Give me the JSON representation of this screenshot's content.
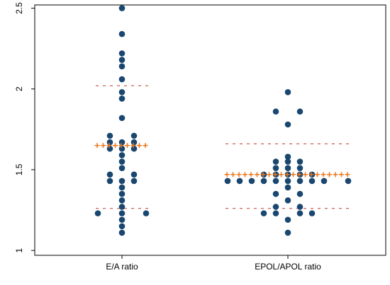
{
  "chart_data": {
    "type": "scatter",
    "categories": [
      "E/A ratio",
      "EPOL/APOL ratio"
    ],
    "ylim": [
      0.97,
      2.52
    ],
    "yticks": [
      {
        "value": 1,
        "label": "1"
      },
      {
        "value": 1.5,
        "label": "1.5"
      },
      {
        "value": 2,
        "label": "2"
      },
      {
        "value": 2.5,
        "label": "2.5"
      }
    ],
    "grid": false,
    "colors": {
      "point": "#1a476f",
      "mean_marker": "#e8761b",
      "reference_line": "#c0392b",
      "frame": "#000000"
    },
    "groups": [
      {
        "category": "E/A ratio",
        "points": [
          {
            "y": 2.5,
            "offset": 0
          },
          {
            "y": 2.34,
            "offset": 0
          },
          {
            "y": 2.22,
            "offset": 0
          },
          {
            "y": 2.18,
            "offset": 0
          },
          {
            "y": 2.14,
            "offset": 0
          },
          {
            "y": 2.06,
            "offset": 0
          },
          {
            "y": 1.98,
            "offset": 0
          },
          {
            "y": 1.94,
            "offset": 0
          },
          {
            "y": 1.82,
            "offset": 0
          },
          {
            "y": 1.71,
            "offset": -1
          },
          {
            "y": 1.71,
            "offset": 1
          },
          {
            "y": 1.67,
            "offset": -1
          },
          {
            "y": 1.67,
            "offset": 0
          },
          {
            "y": 1.67,
            "offset": 1
          },
          {
            "y": 1.63,
            "offset": -1
          },
          {
            "y": 1.63,
            "offset": 0
          },
          {
            "y": 1.63,
            "offset": 1
          },
          {
            "y": 1.59,
            "offset": 0
          },
          {
            "y": 1.55,
            "offset": 0
          },
          {
            "y": 1.51,
            "offset": 0
          },
          {
            "y": 1.47,
            "offset": -1
          },
          {
            "y": 1.47,
            "offset": 1
          },
          {
            "y": 1.43,
            "offset": -1
          },
          {
            "y": 1.43,
            "offset": 0
          },
          {
            "y": 1.43,
            "offset": 1
          },
          {
            "y": 1.39,
            "offset": 0
          },
          {
            "y": 1.35,
            "offset": 0
          },
          {
            "y": 1.31,
            "offset": 0
          },
          {
            "y": 1.27,
            "offset": 0
          },
          {
            "y": 1.23,
            "offset": -2
          },
          {
            "y": 1.23,
            "offset": 0
          },
          {
            "y": 1.23,
            "offset": 2
          },
          {
            "y": 1.19,
            "offset": 0
          },
          {
            "y": 1.15,
            "offset": 0
          },
          {
            "y": 1.11,
            "offset": 0
          }
        ],
        "mean": 1.65,
        "reference_lines": [
          2.02,
          1.26
        ]
      },
      {
        "category": "EPOL/APOL ratio",
        "points": [
          {
            "y": 1.98,
            "offset": 0
          },
          {
            "y": 1.86,
            "offset": -1
          },
          {
            "y": 1.86,
            "offset": 1
          },
          {
            "y": 1.78,
            "offset": 0
          },
          {
            "y": 1.58,
            "offset": 0
          },
          {
            "y": 1.55,
            "offset": -1
          },
          {
            "y": 1.55,
            "offset": 0
          },
          {
            "y": 1.55,
            "offset": 1
          },
          {
            "y": 1.51,
            "offset": -1
          },
          {
            "y": 1.51,
            "offset": 0
          },
          {
            "y": 1.51,
            "offset": 1
          },
          {
            "y": 1.47,
            "offset": -2
          },
          {
            "y": 1.47,
            "offset": -1
          },
          {
            "y": 1.47,
            "offset": 0
          },
          {
            "y": 1.47,
            "offset": 1
          },
          {
            "y": 1.47,
            "offset": 2
          },
          {
            "y": 1.43,
            "offset": -5
          },
          {
            "y": 1.43,
            "offset": -4
          },
          {
            "y": 1.43,
            "offset": -3
          },
          {
            "y": 1.43,
            "offset": -2
          },
          {
            "y": 1.43,
            "offset": -1
          },
          {
            "y": 1.43,
            "offset": 0
          },
          {
            "y": 1.43,
            "offset": 1
          },
          {
            "y": 1.43,
            "offset": 2
          },
          {
            "y": 1.43,
            "offset": 3
          },
          {
            "y": 1.43,
            "offset": 5
          },
          {
            "y": 1.39,
            "offset": 0
          },
          {
            "y": 1.35,
            "offset": -1
          },
          {
            "y": 1.35,
            "offset": 1
          },
          {
            "y": 1.31,
            "offset": 0
          },
          {
            "y": 1.27,
            "offset": -1
          },
          {
            "y": 1.27,
            "offset": 1
          },
          {
            "y": 1.23,
            "offset": -2
          },
          {
            "y": 1.23,
            "offset": -1
          },
          {
            "y": 1.23,
            "offset": 1
          },
          {
            "y": 1.23,
            "offset": 2
          },
          {
            "y": 1.19,
            "offset": 0
          },
          {
            "y": 1.11,
            "offset": 0
          }
        ],
        "mean": 1.47,
        "reference_lines": [
          1.66,
          1.26
        ]
      }
    ]
  }
}
